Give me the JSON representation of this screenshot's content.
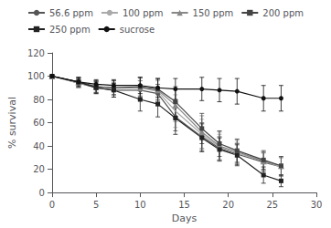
{
  "chart_data": {
    "type": "line",
    "title": "",
    "xlabel": "Days",
    "ylabel": "% survival",
    "xlim": [
      0,
      30
    ],
    "ylim": [
      0,
      120
    ],
    "xticks": [
      0,
      5,
      10,
      15,
      20,
      25,
      30
    ],
    "yticks": [
      0,
      20,
      40,
      60,
      80,
      100,
      120
    ],
    "grid": false,
    "legend": "top",
    "x": [
      0,
      3,
      5,
      7,
      10,
      12,
      14,
      17,
      19,
      21,
      24,
      26
    ],
    "series": [
      {
        "name": "56.6 ppm",
        "color": "#555555",
        "marker": "circle",
        "line_style": "solid",
        "values": [
          100,
          94,
          90,
          88,
          88,
          85,
          65,
          48,
          38,
          33,
          26,
          22
        ],
        "errors": [
          0,
          4,
          5,
          6,
          8,
          8,
          12,
          12,
          10,
          9,
          8,
          8
        ]
      },
      {
        "name": "100 ppm",
        "color": "#aaaaaa",
        "marker": "none",
        "line_style": "solid",
        "values": [
          100,
          94,
          91,
          90,
          90,
          87,
          70,
          50,
          39,
          34,
          27,
          22
        ],
        "errors": [
          0,
          4,
          5,
          6,
          8,
          9,
          14,
          13,
          11,
          9,
          8,
          8
        ]
      },
      {
        "name": "150 ppm",
        "color": "#888888",
        "marker": "triangle",
        "line_style": "solid",
        "values": [
          100,
          95,
          91,
          90,
          90,
          88,
          75,
          52,
          40,
          35,
          27,
          23
        ],
        "errors": [
          0,
          4,
          5,
          6,
          9,
          9,
          14,
          14,
          12,
          10,
          8,
          8
        ]
      },
      {
        "name": "200 ppm",
        "color": "#444444",
        "marker": "square",
        "line_style": "solid",
        "values": [
          100,
          95,
          91,
          90,
          91,
          89,
          78,
          55,
          42,
          36,
          28,
          23
        ],
        "errors": [
          0,
          4,
          5,
          6,
          8,
          9,
          13,
          13,
          11,
          10,
          8,
          8
        ]
      },
      {
        "name": "250 ppm",
        "color": "#222222",
        "marker": "square",
        "line_style": "solid",
        "values": [
          100,
          95,
          90,
          88,
          80,
          76,
          64,
          47,
          37,
          32,
          15,
          10
        ],
        "errors": [
          0,
          4,
          5,
          6,
          10,
          11,
          14,
          12,
          10,
          9,
          7,
          5
        ]
      },
      {
        "name": "sucrose",
        "color": "#111111",
        "marker": "circle",
        "line_style": "solid",
        "values": [
          100,
          95,
          93,
          92,
          92,
          90,
          89,
          89,
          88,
          87,
          81,
          81
        ],
        "errors": [
          0,
          3,
          4,
          5,
          7,
          8,
          9,
          10,
          10,
          11,
          11,
          11
        ]
      }
    ]
  }
}
